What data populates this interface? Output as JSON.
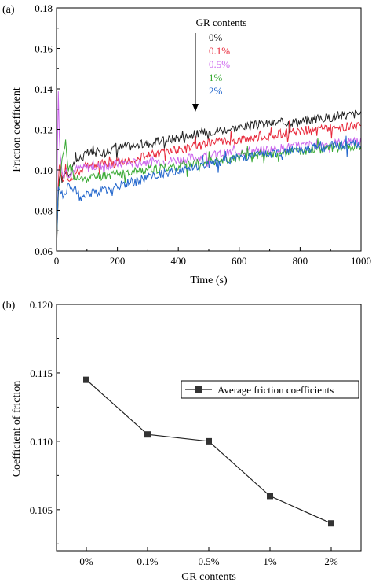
{
  "chart_data": [
    {
      "panel_label": "(a)",
      "type": "line",
      "xlabel": "Time (s)",
      "ylabel": "Friction coefficient",
      "xlim": [
        0,
        1000
      ],
      "ylim": [
        0.06,
        0.18
      ],
      "x_ticks": [
        "0",
        "200",
        "400",
        "600",
        "800",
        "1000"
      ],
      "y_ticks": [
        "0.06",
        "0.08",
        "0.10",
        "0.12",
        "0.14",
        "0.16",
        "0.18"
      ],
      "legend_title": "GR contents",
      "legend_position": "top-center",
      "series": [
        {
          "name": "0%",
          "color": "#222222",
          "x": [
            0,
            5,
            10,
            20,
            30,
            40,
            60,
            80,
            100,
            150,
            200,
            300,
            400,
            500,
            600,
            700,
            800,
            900,
            1000
          ],
          "y": [
            0.06,
            0.085,
            0.098,
            0.095,
            0.1,
            0.098,
            0.104,
            0.106,
            0.108,
            0.109,
            0.111,
            0.113,
            0.116,
            0.119,
            0.121,
            0.123,
            0.124,
            0.126,
            0.128
          ]
        },
        {
          "name": "0.1%",
          "color": "#e8283a",
          "x": [
            0,
            5,
            10,
            20,
            30,
            40,
            60,
            80,
            100,
            150,
            200,
            300,
            400,
            500,
            600,
            700,
            800,
            900,
            1000
          ],
          "y": [
            0.06,
            0.09,
            0.105,
            0.095,
            0.099,
            0.096,
            0.098,
            0.1,
            0.102,
            0.103,
            0.104,
            0.107,
            0.11,
            0.113,
            0.115,
            0.117,
            0.119,
            0.121,
            0.122
          ]
        },
        {
          "name": "0.5%",
          "color": "#cc66ee",
          "x": [
            0,
            5,
            10,
            20,
            30,
            40,
            60,
            80,
            100,
            150,
            200,
            300,
            400,
            500,
            600,
            700,
            800,
            900,
            1000
          ],
          "y": [
            0.06,
            0.146,
            0.11,
            0.097,
            0.1,
            0.098,
            0.1,
            0.101,
            0.101,
            0.102,
            0.103,
            0.104,
            0.105,
            0.107,
            0.109,
            0.11,
            0.112,
            0.113,
            0.114
          ]
        },
        {
          "name": "1%",
          "color": "#3aaa35",
          "x": [
            0,
            5,
            10,
            20,
            30,
            40,
            60,
            80,
            100,
            150,
            200,
            300,
            400,
            500,
            600,
            700,
            800,
            900,
            1000
          ],
          "y": [
            0.06,
            0.09,
            0.093,
            0.108,
            0.113,
            0.1,
            0.096,
            0.095,
            0.096,
            0.097,
            0.098,
            0.1,
            0.102,
            0.104,
            0.106,
            0.108,
            0.109,
            0.111,
            0.112
          ]
        },
        {
          "name": "2%",
          "color": "#2266cc",
          "x": [
            0,
            5,
            10,
            20,
            30,
            40,
            60,
            80,
            100,
            150,
            200,
            300,
            400,
            500,
            600,
            700,
            800,
            900,
            1000
          ],
          "y": [
            0.06,
            0.092,
            0.09,
            0.088,
            0.09,
            0.092,
            0.09,
            0.086,
            0.088,
            0.09,
            0.092,
            0.096,
            0.1,
            0.103,
            0.106,
            0.108,
            0.11,
            0.112,
            0.113
          ]
        }
      ]
    },
    {
      "panel_label": "(b)",
      "type": "line",
      "xlabel": "GR contents",
      "ylabel": "Coefficient of friction",
      "categories": [
        "0%",
        "0.1%",
        "0.5%",
        "1%",
        "2%"
      ],
      "ylim": [
        0.102,
        0.12
      ],
      "y_ticks": [
        "0.105",
        "0.110",
        "0.115",
        "0.120"
      ],
      "legend_position": "middle-right",
      "series": [
        {
          "name": "Average friction coefficients",
          "color": "#222222",
          "marker": "square",
          "values": [
            0.1145,
            0.1105,
            0.11,
            0.106,
            0.104
          ]
        }
      ]
    }
  ]
}
